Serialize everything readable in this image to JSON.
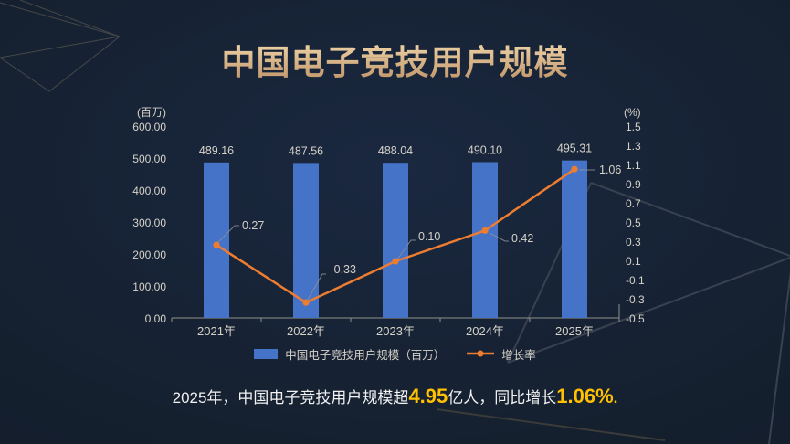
{
  "title": "中国电子竞技用户规模",
  "chart_data": {
    "type": "combo-bar-line",
    "categories": [
      "2021年",
      "2022年",
      "2023年",
      "2024年",
      "2025年"
    ],
    "series": [
      {
        "name": "中国电子竞技用户规模（百万）",
        "type": "bar",
        "axis": "left",
        "color": "#4573c8",
        "values": [
          489.16,
          487.56,
          488.04,
          490.1,
          495.31
        ],
        "labels": [
          "489.16",
          "487.56",
          "488.04",
          "490.10",
          "495.31"
        ]
      },
      {
        "name": "增长率",
        "type": "line",
        "axis": "right",
        "color": "#ed7d31",
        "values": [
          0.27,
          -0.33,
          0.1,
          0.42,
          1.06
        ],
        "labels": [
          "0.27",
          "- 0.33",
          "0.10",
          "0.42",
          "1.06"
        ]
      }
    ],
    "left_axis": {
      "unit": "(百万)",
      "min": 0,
      "max": 600,
      "ticks": [
        "600.00",
        "500.00",
        "400.00",
        "300.00",
        "200.00",
        "100.00",
        "0.00"
      ]
    },
    "right_axis": {
      "unit": "(%)",
      "min": -0.5,
      "max": 1.5,
      "ticks": [
        "1.5",
        "1.3",
        "1.1",
        "0.9",
        "0.7",
        "0.5",
        "0.3",
        "0.1",
        "-0.1",
        "-0.3",
        "-0.5"
      ]
    },
    "grid": false,
    "legend_position": "bottom"
  },
  "legend": {
    "items": [
      {
        "label": "中国电子竞技用户规模（百万）",
        "swatch": "bar",
        "color": "#4573c8"
      },
      {
        "label": "增长率",
        "swatch": "line",
        "color": "#ed7d31"
      }
    ]
  },
  "footnote": {
    "part1": "2025年，中国电子竞技用户规模超",
    "highlight1": "4.95",
    "part2": "亿人，同比增长",
    "highlight2": "1.06%",
    "suffix": "."
  },
  "colors": {
    "background": "#15202f",
    "title_gold": "#d9b37f",
    "bar": "#4573c8",
    "line": "#ed7d31",
    "tick_text": "#d6d2c8",
    "axis_line": "#8f9189",
    "highlight": "#ffc000"
  }
}
